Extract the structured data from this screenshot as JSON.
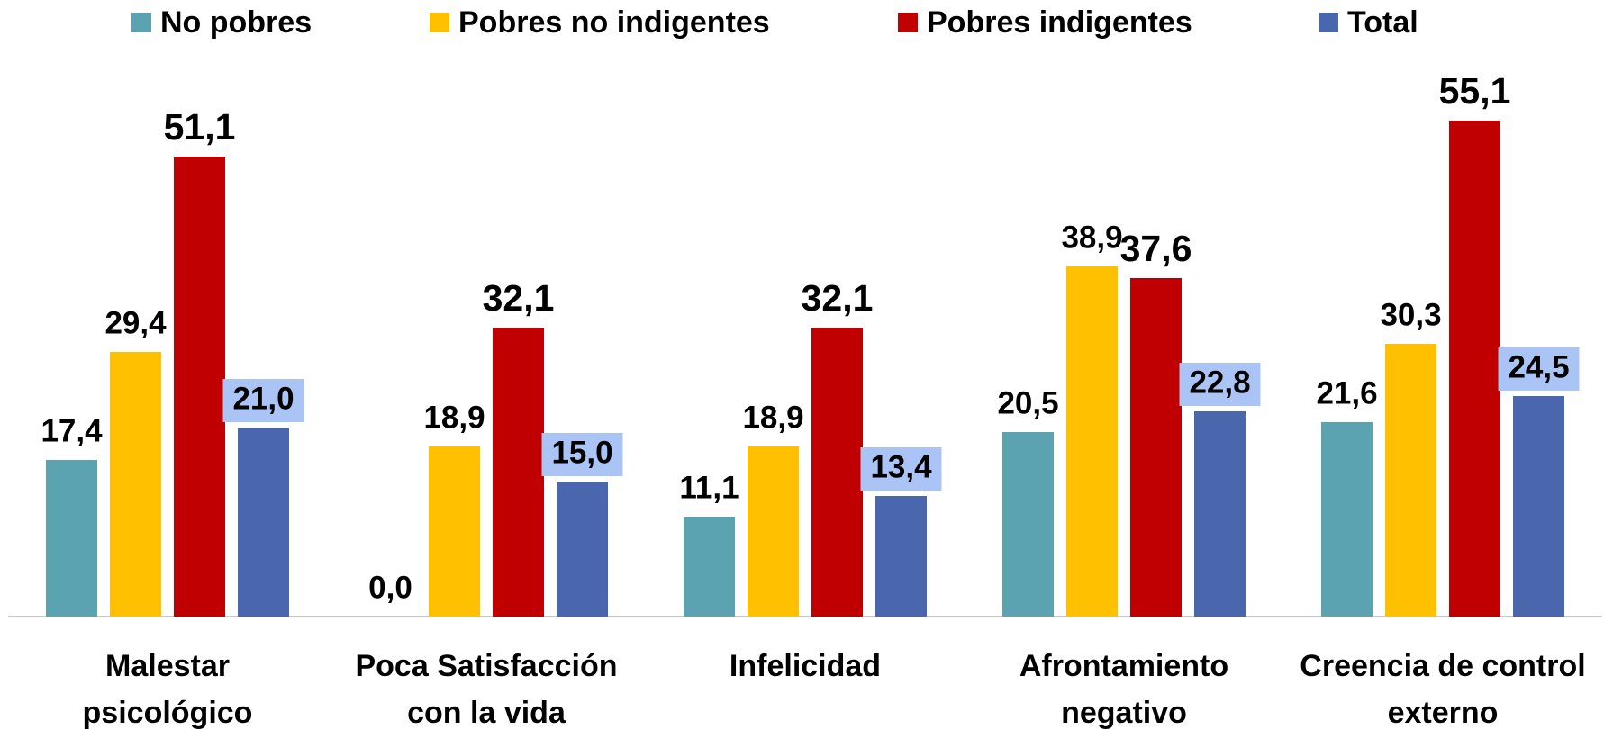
{
  "chart_data": {
    "type": "bar",
    "categories": [
      [
        "Malestar",
        "psicológico"
      ],
      [
        "Poca Satisfacción",
        "con la vida"
      ],
      [
        "Infelicidad"
      ],
      [
        "Afrontamiento",
        "negativo"
      ],
      [
        "Creencia de control",
        "externo"
      ]
    ],
    "series": [
      {
        "name": "No pobres",
        "color": "#5ba3b0",
        "values": [
          17.4,
          0.0,
          11.1,
          20.5,
          21.6
        ],
        "value_labels": [
          "17,4",
          "0,0",
          "11,1",
          "20,5",
          "21,6"
        ]
      },
      {
        "name": "Pobres no indigentes",
        "color": "#ffc000",
        "values": [
          29.4,
          18.9,
          18.9,
          38.9,
          30.3
        ],
        "value_labels": [
          "29,4",
          "18,9",
          "18,9",
          "38,9",
          "30,3"
        ]
      },
      {
        "name": "Pobres indigentes",
        "color": "#c00000",
        "values": [
          51.1,
          32.1,
          32.1,
          37.6,
          55.1
        ],
        "value_labels": [
          "51,1",
          "32,1",
          "32,1",
          "37,6",
          "55,1"
        ]
      },
      {
        "name": "Total",
        "color": "#4a67ad",
        "values": [
          21.0,
          15.0,
          13.4,
          22.8,
          24.5
        ],
        "value_labels": [
          "21,0",
          "15,0",
          "13,4",
          "22,8",
          "24,5"
        ]
      }
    ],
    "ylim": [
      0,
      60
    ],
    "legend": "top"
  }
}
